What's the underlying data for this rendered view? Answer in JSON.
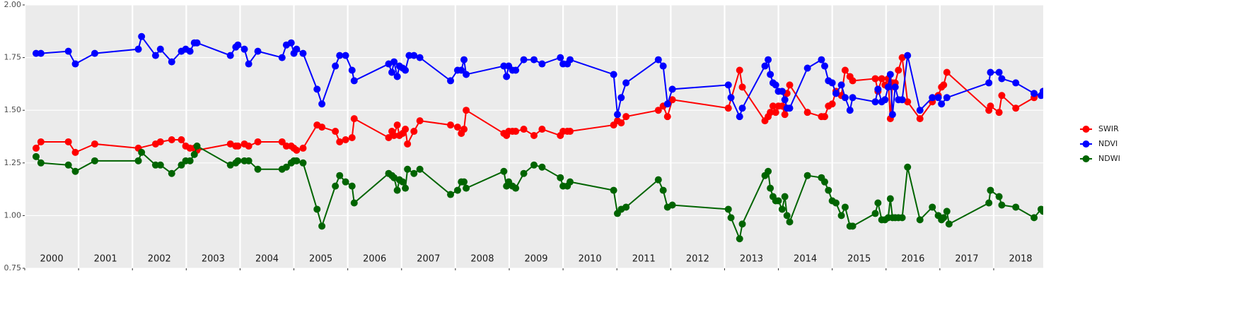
{
  "chart_data": {
    "type": "line",
    "xlim": [
      2000,
      2018.92
    ],
    "ylim": [
      0.75,
      2.0
    ],
    "yticks": [
      {
        "value": 0.75,
        "label": "0.75"
      },
      {
        "value": 1.0,
        "label": "1.00"
      },
      {
        "value": 1.25,
        "label": "1.25"
      },
      {
        "value": 1.5,
        "label": "1.50"
      },
      {
        "value": 1.75,
        "label": "1.75"
      },
      {
        "value": 2.0,
        "label": "2.00"
      }
    ],
    "xticks": [
      2000,
      2001,
      2002,
      2003,
      2004,
      2005,
      2006,
      2007,
      2008,
      2009,
      2010,
      2011,
      2012,
      2013,
      2014,
      2015,
      2016,
      2017,
      2018
    ],
    "year_labels": [
      2000,
      2001,
      2002,
      2003,
      2004,
      2005,
      2006,
      2007,
      2008,
      2009,
      2010,
      2011,
      2012,
      2013,
      2014,
      2015,
      2016,
      2017,
      2018
    ],
    "grid": true,
    "legend": "right",
    "series": [
      {
        "name": "SWIR",
        "color": "#ff0000",
        "x": [
          2000.21,
          2000.3,
          2000.81,
          2000.94,
          2001.3,
          2002.11,
          2002.43,
          2002.52,
          2002.73,
          2002.91,
          2002.99,
          2003.07,
          2003.15,
          2003.2,
          2003.82,
          2003.92,
          2003.96,
          2004.08,
          2004.16,
          2004.33,
          2004.78,
          2004.86,
          2004.95,
          2005.0,
          2005.05,
          2005.17,
          2005.43,
          2005.52,
          2005.77,
          2005.85,
          2005.96,
          2006.08,
          2006.12,
          2006.76,
          2006.82,
          2006.86,
          2006.92,
          2006.96,
          2007.02,
          2007.07,
          2007.11,
          2007.23,
          2007.34,
          2007.91,
          2008.04,
          2008.11,
          2008.16,
          2008.2,
          2008.9,
          2008.95,
          2008.99,
          2009.06,
          2009.12,
          2009.27,
          2009.46,
          2009.61,
          2009.95,
          2010.0,
          2010.08,
          2010.13,
          2010.94,
          2011.01,
          2011.08,
          2011.17,
          2011.77,
          2011.86,
          2011.94,
          2012.03,
          2013.07,
          2013.28,
          2013.33,
          2013.75,
          2013.81,
          2013.85,
          2013.9,
          2013.95,
          2014.0,
          2014.07,
          2014.12,
          2014.16,
          2014.21,
          2014.54,
          2014.8,
          2014.86,
          2014.93,
          2015.0,
          2015.07,
          2015.17,
          2015.24,
          2015.33,
          2015.38,
          2015.8,
          2015.85,
          2015.92,
          2015.98,
          2016.04,
          2016.08,
          2016.12,
          2016.17,
          2016.23,
          2016.3,
          2016.4,
          2016.63,
          2016.86,
          2016.97,
          2017.03,
          2017.07,
          2017.13,
          2017.91,
          2017.94,
          2018.1,
          2018.15,
          2018.41,
          2018.75,
          2018.92
        ],
        "values": [
          1.32,
          1.35,
          1.35,
          1.3,
          1.34,
          1.32,
          1.34,
          1.35,
          1.36,
          1.36,
          1.33,
          1.32,
          1.32,
          1.31,
          1.34,
          1.33,
          1.33,
          1.34,
          1.33,
          1.35,
          1.35,
          1.33,
          1.33,
          1.32,
          1.31,
          1.32,
          1.43,
          1.42,
          1.4,
          1.35,
          1.36,
          1.37,
          1.46,
          1.37,
          1.4,
          1.38,
          1.43,
          1.38,
          1.39,
          1.41,
          1.34,
          1.4,
          1.45,
          1.43,
          1.42,
          1.39,
          1.41,
          1.5,
          1.39,
          1.38,
          1.4,
          1.4,
          1.4,
          1.41,
          1.38,
          1.41,
          1.38,
          1.4,
          1.4,
          1.4,
          1.43,
          1.45,
          1.44,
          1.47,
          1.5,
          1.52,
          1.47,
          1.55,
          1.51,
          1.69,
          1.61,
          1.45,
          1.47,
          1.49,
          1.52,
          1.49,
          1.52,
          1.52,
          1.48,
          1.58,
          1.62,
          1.49,
          1.47,
          1.47,
          1.52,
          1.53,
          1.59,
          1.57,
          1.69,
          1.66,
          1.64,
          1.65,
          1.59,
          1.65,
          1.62,
          1.65,
          1.46,
          1.63,
          1.63,
          1.69,
          1.75,
          1.54,
          1.46,
          1.54,
          1.57,
          1.61,
          1.62,
          1.68,
          1.5,
          1.52,
          1.49,
          1.57,
          1.51,
          1.56,
          1.59
        ]
      },
      {
        "name": "NDVI",
        "color": "#0000ff",
        "x": [
          2000.21,
          2000.3,
          2000.81,
          2000.94,
          2001.3,
          2002.11,
          2002.17,
          2002.43,
          2002.52,
          2002.73,
          2002.91,
          2002.99,
          2003.07,
          2003.15,
          2003.2,
          2003.82,
          2003.92,
          2003.96,
          2004.08,
          2004.16,
          2004.33,
          2004.78,
          2004.86,
          2004.95,
          2005.0,
          2005.05,
          2005.17,
          2005.43,
          2005.52,
          2005.77,
          2005.85,
          2005.96,
          2006.08,
          2006.12,
          2006.76,
          2006.82,
          2006.86,
          2006.92,
          2006.96,
          2007.02,
          2007.07,
          2007.14,
          2007.23,
          2007.34,
          2007.91,
          2008.04,
          2008.11,
          2008.16,
          2008.2,
          2008.9,
          2008.95,
          2008.99,
          2009.06,
          2009.12,
          2009.27,
          2009.46,
          2009.61,
          2009.95,
          2010.0,
          2010.08,
          2010.13,
          2010.94,
          2011.01,
          2011.08,
          2011.17,
          2011.77,
          2011.86,
          2011.94,
          2012.03,
          2013.07,
          2013.12,
          2013.28,
          2013.33,
          2013.75,
          2013.81,
          2013.85,
          2013.9,
          2013.95,
          2014.0,
          2014.07,
          2014.12,
          2014.16,
          2014.21,
          2014.54,
          2014.8,
          2014.86,
          2014.93,
          2015.0,
          2015.07,
          2015.17,
          2015.24,
          2015.33,
          2015.38,
          2015.8,
          2015.85,
          2015.92,
          2015.98,
          2016.04,
          2016.08,
          2016.12,
          2016.17,
          2016.23,
          2016.3,
          2016.4,
          2016.63,
          2016.86,
          2016.97,
          2017.03,
          2017.13,
          2017.91,
          2017.94,
          2018.1,
          2018.15,
          2018.41,
          2018.75,
          2018.88,
          2018.92
        ],
        "values": [
          1.77,
          1.77,
          1.78,
          1.72,
          1.77,
          1.79,
          1.85,
          1.76,
          1.79,
          1.73,
          1.78,
          1.79,
          1.78,
          1.82,
          1.82,
          1.76,
          1.8,
          1.81,
          1.79,
          1.72,
          1.78,
          1.75,
          1.81,
          1.82,
          1.77,
          1.79,
          1.77,
          1.6,
          1.53,
          1.71,
          1.76,
          1.76,
          1.69,
          1.64,
          1.72,
          1.68,
          1.73,
          1.66,
          1.71,
          1.7,
          1.69,
          1.76,
          1.76,
          1.75,
          1.64,
          1.69,
          1.69,
          1.74,
          1.67,
          1.71,
          1.66,
          1.71,
          1.69,
          1.69,
          1.74,
          1.74,
          1.72,
          1.75,
          1.72,
          1.72,
          1.74,
          1.67,
          1.48,
          1.56,
          1.63,
          1.74,
          1.71,
          1.53,
          1.6,
          1.62,
          1.56,
          1.47,
          1.51,
          1.71,
          1.74,
          1.67,
          1.63,
          1.62,
          1.59,
          1.59,
          1.55,
          1.51,
          1.51,
          1.7,
          1.74,
          1.71,
          1.64,
          1.63,
          1.58,
          1.62,
          1.56,
          1.5,
          1.56,
          1.54,
          1.6,
          1.54,
          1.55,
          1.61,
          1.67,
          1.48,
          1.61,
          1.55,
          1.55,
          1.76,
          1.5,
          1.56,
          1.56,
          1.53,
          1.56,
          1.63,
          1.68,
          1.68,
          1.65,
          1.63,
          1.58,
          1.57,
          1.59
        ]
      },
      {
        "name": "NDWI",
        "color": "#006400",
        "x": [
          2000.21,
          2000.3,
          2000.81,
          2000.94,
          2001.3,
          2002.11,
          2002.17,
          2002.43,
          2002.52,
          2002.73,
          2002.91,
          2002.99,
          2003.07,
          2003.15,
          2003.2,
          2003.82,
          2003.92,
          2003.96,
          2004.08,
          2004.16,
          2004.33,
          2004.78,
          2004.86,
          2004.95,
          2005.0,
          2005.05,
          2005.17,
          2005.43,
          2005.52,
          2005.77,
          2005.85,
          2005.96,
          2006.08,
          2006.12,
          2006.76,
          2006.82,
          2006.86,
          2006.92,
          2006.96,
          2007.02,
          2007.07,
          2007.11,
          2007.23,
          2007.34,
          2007.91,
          2008.04,
          2008.11,
          2008.16,
          2008.2,
          2008.9,
          2008.95,
          2008.99,
          2009.06,
          2009.12,
          2009.27,
          2009.46,
          2009.61,
          2009.95,
          2010.0,
          2010.08,
          2010.13,
          2010.94,
          2011.01,
          2011.08,
          2011.17,
          2011.77,
          2011.86,
          2011.94,
          2012.03,
          2013.07,
          2013.12,
          2013.28,
          2013.33,
          2013.75,
          2013.81,
          2013.85,
          2013.9,
          2013.95,
          2014.0,
          2014.07,
          2014.12,
          2014.16,
          2014.21,
          2014.54,
          2014.8,
          2014.86,
          2014.93,
          2015.0,
          2015.07,
          2015.17,
          2015.24,
          2015.33,
          2015.38,
          2015.8,
          2015.85,
          2015.92,
          2015.98,
          2016.04,
          2016.08,
          2016.12,
          2016.17,
          2016.23,
          2016.3,
          2016.4,
          2016.63,
          2016.86,
          2016.97,
          2017.03,
          2017.07,
          2017.13,
          2017.17,
          2017.91,
          2017.94,
          2018.1,
          2018.15,
          2018.41,
          2018.75,
          2018.88,
          2018.92
        ],
        "values": [
          1.28,
          1.25,
          1.24,
          1.21,
          1.26,
          1.26,
          1.3,
          1.24,
          1.24,
          1.2,
          1.24,
          1.26,
          1.26,
          1.29,
          1.33,
          1.24,
          1.25,
          1.26,
          1.26,
          1.26,
          1.22,
          1.22,
          1.23,
          1.25,
          1.26,
          1.26,
          1.25,
          1.03,
          0.95,
          1.14,
          1.19,
          1.16,
          1.14,
          1.06,
          1.2,
          1.19,
          1.18,
          1.12,
          1.17,
          1.16,
          1.13,
          1.22,
          1.2,
          1.22,
          1.1,
          1.12,
          1.16,
          1.16,
          1.13,
          1.21,
          1.14,
          1.16,
          1.14,
          1.13,
          1.2,
          1.24,
          1.23,
          1.18,
          1.14,
          1.14,
          1.16,
          1.12,
          1.01,
          1.03,
          1.04,
          1.17,
          1.12,
          1.04,
          1.05,
          1.03,
          0.99,
          0.89,
          0.96,
          1.19,
          1.21,
          1.13,
          1.09,
          1.07,
          1.07,
          1.03,
          1.09,
          1.0,
          0.97,
          1.19,
          1.18,
          1.16,
          1.12,
          1.07,
          1.06,
          1.0,
          1.04,
          0.95,
          0.95,
          1.01,
          1.06,
          0.98,
          0.98,
          0.99,
          1.08,
          0.99,
          0.99,
          0.99,
          0.99,
          1.23,
          0.98,
          1.04,
          1.0,
          0.98,
          0.99,
          1.02,
          0.96,
          1.06,
          1.12,
          1.09,
          1.05,
          1.04,
          0.99,
          1.03,
          1.02
        ]
      }
    ]
  }
}
